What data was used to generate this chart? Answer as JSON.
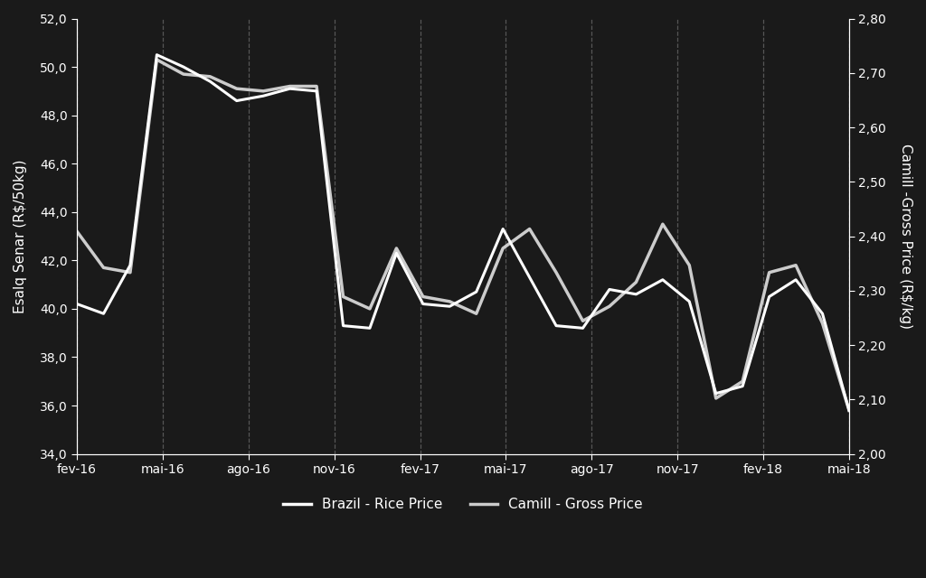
{
  "background_color": "#1a1a1a",
  "text_color": "#ffffff",
  "grid_color": "#666666",
  "line1_color": "#ffffff",
  "line2_color": "#cccccc",
  "xlabel_ticks": [
    "fev-16",
    "mai-16",
    "ago-16",
    "nov-16",
    "fev-17",
    "mai-17",
    "ago-17",
    "nov-17",
    "fev-18",
    "mai-18"
  ],
  "ylabel_left": "Esalq Senar (R$/50kg)",
  "ylabel_right": "Camill -Gross Price (R$/kg)",
  "ylim_left": [
    34.0,
    52.0
  ],
  "ylim_right": [
    2.0,
    2.8
  ],
  "yticks_left": [
    34.0,
    36.0,
    38.0,
    40.0,
    42.0,
    44.0,
    46.0,
    48.0,
    50.0,
    52.0
  ],
  "yticks_right": [
    2.0,
    2.1,
    2.2,
    2.3,
    2.4,
    2.5,
    2.6,
    2.7,
    2.8
  ],
  "legend_entries": [
    "Brazil - Rice Price",
    "Camill - Gross Price"
  ],
  "brazil_rice": [
    40.2,
    39.8,
    41.8,
    50.5,
    50.0,
    49.4,
    48.6,
    48.8,
    49.1,
    49.0,
    39.3,
    39.2,
    42.3,
    40.2,
    40.1,
    40.7,
    43.3,
    41.3,
    39.3,
    39.2,
    40.8,
    40.6,
    41.2,
    40.3,
    36.5,
    36.8,
    40.5,
    41.2,
    39.8,
    35.8
  ],
  "camill_gross_rs50": [
    43.2,
    41.7,
    41.5,
    50.3,
    49.7,
    49.6,
    49.1,
    49.0,
    49.2,
    49.2,
    40.5,
    40.0,
    42.5,
    40.5,
    40.3,
    39.8,
    42.5,
    43.3,
    41.5,
    39.5,
    40.1,
    41.1,
    43.5,
    41.8,
    36.3,
    37.0,
    41.5,
    41.8,
    39.4,
    35.8
  ],
  "n_points": 30
}
